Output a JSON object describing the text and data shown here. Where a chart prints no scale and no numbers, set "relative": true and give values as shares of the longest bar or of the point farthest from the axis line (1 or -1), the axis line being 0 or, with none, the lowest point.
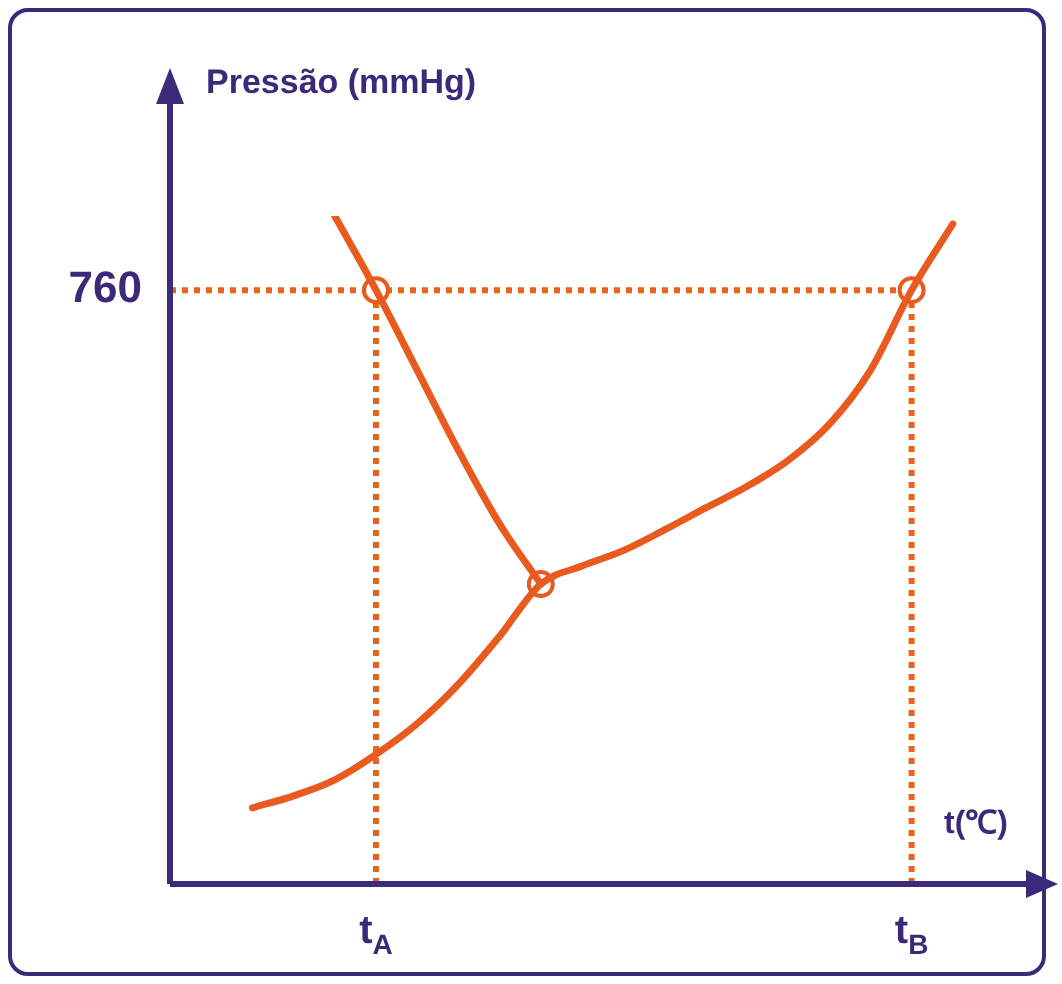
{
  "chart_data": {
    "type": "line",
    "relative": true,
    "ylabel": "Pressão (mmHg)",
    "xlabel": "t(℃)",
    "grid": false,
    "legend": false,
    "marker": "none",
    "line_style": "solid",
    "categories": [
      null,
      null,
      null,
      null,
      null,
      "t$_{A}$",
      null,
      null,
      null,
      null,
      null,
      null,
      null,
      null,
      null,
      null,
      null,
      null,
      "t$_{B}$",
      null,
      null
    ],
    "annotations": [
      "760"
    ],
    "ref_lines": [
      {
        "axis": "y",
        "value": 0.889,
        "color": "#e8641e",
        "line_style": "dotted"
      },
      {
        "axis": "x",
        "value": "t$_{A}$",
        "color": "#e8641e",
        "line_style": "dotted"
      },
      {
        "axis": "x",
        "value": "t$_{B}$",
        "color": "#e8641e",
        "line_style": "dotted"
      }
    ],
    "series": [
      {
        "color": "#e85a1e",
        "values": [
          null,
          null,
          0.114,
          0.132,
          0.156,
          0.194,
          0.24,
          0.299,
          0.371,
          0.449,
          0.476,
          0.499,
          0.53,
          0.563,
          0.595,
          0.634,
          0.688,
          0.769,
          0.889,
          0.988,
          null
        ]
      },
      {
        "color": "#e85a1e",
        "values": [
          null,
          null,
          null,
          null,
          1,
          0.889,
          0.769,
          0.649,
          0.539,
          0.449,
          null,
          null,
          null,
          null,
          null,
          null,
          null,
          null,
          null,
          null,
          null
        ]
      },
      {
        "type": "scatter",
        "marker": "circle",
        "color": "#e85a1e",
        "values": [
          null,
          null,
          null,
          null,
          null,
          0.889,
          null,
          null,
          null,
          0.449,
          null,
          null,
          null,
          null,
          null,
          null,
          null,
          null,
          0.889,
          null,
          null
        ]
      }
    ]
  }
}
